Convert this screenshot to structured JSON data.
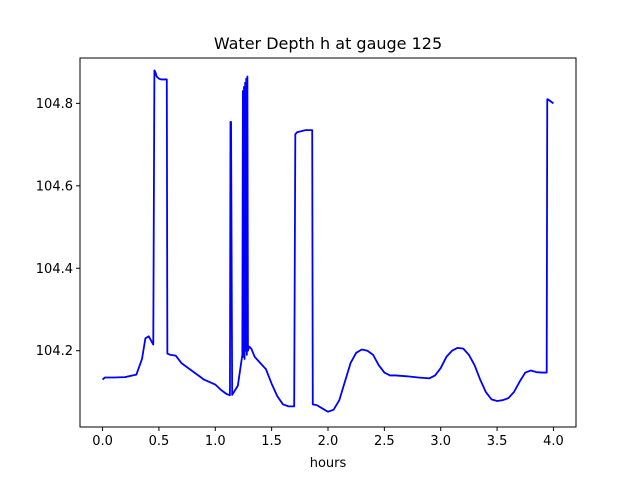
{
  "chart_data": {
    "type": "line",
    "title": "Water Depth h at gauge 125",
    "xlabel": "hours",
    "ylabel": "",
    "xlim": [
      -0.2,
      4.2
    ],
    "ylim": [
      104.015,
      104.91
    ],
    "x_ticks": [
      0.0,
      0.5,
      1.0,
      1.5,
      2.0,
      2.5,
      3.0,
      3.5,
      4.0
    ],
    "x_tick_labels": [
      "0.0",
      "0.5",
      "1.0",
      "1.5",
      "2.0",
      "2.5",
      "3.0",
      "3.5",
      "4.0"
    ],
    "y_ticks": [
      104.2,
      104.4,
      104.6,
      104.8
    ],
    "y_tick_labels": [
      "104.2",
      "104.4",
      "104.6",
      "104.8"
    ],
    "grid": false,
    "series": [
      {
        "color": "#0000ff",
        "x": [
          0.0,
          0.02,
          0.1,
          0.2,
          0.3,
          0.35,
          0.38,
          0.41,
          0.43,
          0.45,
          0.46,
          0.47,
          0.475,
          0.48,
          0.5,
          0.52,
          0.57,
          0.575,
          0.6,
          0.65,
          0.7,
          0.8,
          0.9,
          1.0,
          1.05,
          1.1,
          1.13,
          1.135,
          1.14,
          1.15,
          1.2,
          1.24,
          1.245,
          1.25,
          1.255,
          1.26,
          1.265,
          1.27,
          1.275,
          1.28,
          1.285,
          1.29,
          1.3,
          1.32,
          1.35,
          1.4,
          1.45,
          1.5,
          1.55,
          1.6,
          1.65,
          1.7,
          1.71,
          1.72,
          1.725,
          1.8,
          1.86,
          1.865,
          1.9,
          1.95,
          2.0,
          2.05,
          2.1,
          2.15,
          2.2,
          2.25,
          2.3,
          2.35,
          2.4,
          2.45,
          2.5,
          2.55,
          2.6,
          2.7,
          2.8,
          2.9,
          2.95,
          3.0,
          3.05,
          3.1,
          3.15,
          3.2,
          3.25,
          3.3,
          3.35,
          3.4,
          3.45,
          3.5,
          3.55,
          3.6,
          3.65,
          3.7,
          3.75,
          3.8,
          3.85,
          3.9,
          3.94,
          3.945,
          3.95,
          4.0
        ],
        "y": [
          104.13,
          104.135,
          104.135,
          104.136,
          104.142,
          104.18,
          104.23,
          104.235,
          104.225,
          104.215,
          104.88,
          104.875,
          104.87,
          104.865,
          104.86,
          104.858,
          104.858,
          104.193,
          104.19,
          104.188,
          104.17,
          104.15,
          104.13,
          104.118,
          104.105,
          104.095,
          104.092,
          104.755,
          104.755,
          104.093,
          104.115,
          104.19,
          104.83,
          104.185,
          104.84,
          104.18,
          104.85,
          104.2,
          104.86,
          104.19,
          104.865,
          104.2,
          104.21,
          104.205,
          104.185,
          104.17,
          104.155,
          104.12,
          104.09,
          104.07,
          104.065,
          104.065,
          104.725,
          104.728,
          104.73,
          104.735,
          104.735,
          104.07,
          104.068,
          104.06,
          104.052,
          104.057,
          104.08,
          104.125,
          104.17,
          104.195,
          104.203,
          104.2,
          104.19,
          104.165,
          104.147,
          104.14,
          104.14,
          104.138,
          104.135,
          104.133,
          104.14,
          104.158,
          104.185,
          104.2,
          104.207,
          104.205,
          104.19,
          104.165,
          104.13,
          104.1,
          104.082,
          104.078,
          104.08,
          104.085,
          104.1,
          104.125,
          104.147,
          104.152,
          104.148,
          104.147,
          104.147,
          104.81,
          104.81,
          104.8
        ]
      }
    ]
  }
}
